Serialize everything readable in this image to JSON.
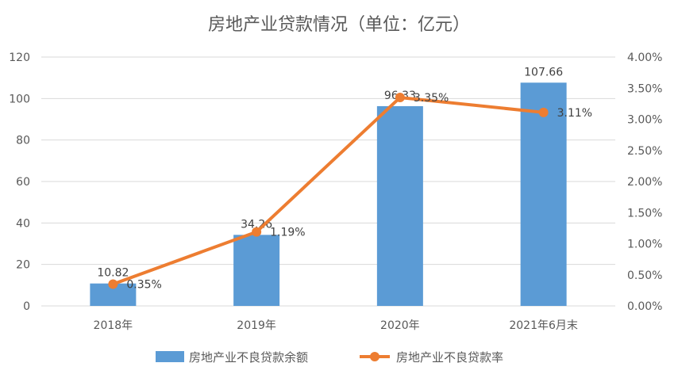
{
  "chart_data": {
    "type": "bar+line",
    "title": "房地产业贷款情况（单位：亿元）",
    "categories": [
      "2018年",
      "2019年",
      "2020年",
      "2021年6月末"
    ],
    "series": [
      {
        "name": "房地产业不良贷款余额",
        "type": "bar",
        "axis": "left",
        "color": "#5B9BD5",
        "values": [
          10.82,
          34.26,
          96.33,
          107.66
        ],
        "labels": [
          "10.82",
          "34.26",
          "96.33",
          "107.66"
        ]
      },
      {
        "name": "房地产业不良贷款率",
        "type": "line",
        "axis": "right",
        "color": "#ED7D31",
        "values": [
          0.35,
          1.19,
          3.35,
          3.11
        ],
        "labels": [
          "0.35%",
          "1.19%",
          "3.35%",
          "3.11%"
        ]
      }
    ],
    "y_left": {
      "ylim": [
        0,
        120
      ],
      "ticks": [
        "0",
        "20",
        "40",
        "60",
        "80",
        "100",
        "120"
      ]
    },
    "y_right": {
      "ylim": [
        0,
        4
      ],
      "ticks": [
        "0.00%",
        "0.50%",
        "1.00%",
        "1.50%",
        "2.00%",
        "2.50%",
        "3.00%",
        "3.50%",
        "4.00%"
      ]
    },
    "grid": true,
    "legend_position": "bottom"
  }
}
